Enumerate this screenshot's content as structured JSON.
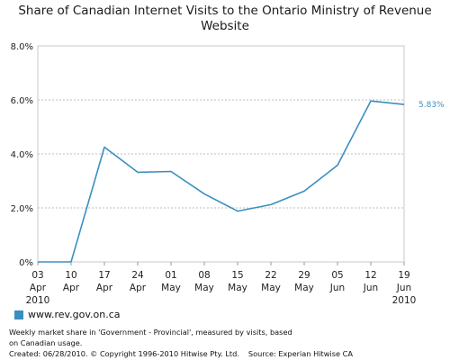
{
  "chart_data": {
    "type": "line",
    "title_line1": "Share of Canadian Internet Visits to the Ontario Ministry of Revenue",
    "title_line2": "Website",
    "x_ticks": [
      [
        "03",
        "Apr",
        "2010"
      ],
      [
        "10",
        "Apr",
        ""
      ],
      [
        "17",
        "Apr",
        ""
      ],
      [
        "24",
        "Apr",
        ""
      ],
      [
        "01",
        "May",
        ""
      ],
      [
        "08",
        "May",
        ""
      ],
      [
        "15",
        "May",
        ""
      ],
      [
        "22",
        "May",
        ""
      ],
      [
        "29",
        "May",
        ""
      ],
      [
        "05",
        "Jun",
        ""
      ],
      [
        "12",
        "Jun",
        ""
      ],
      [
        "19",
        "Jun",
        "2010"
      ]
    ],
    "y_ticks": [
      "0%",
      "2.0%",
      "4.0%",
      "6.0%",
      "8.0%"
    ],
    "ylim": [
      0,
      8
    ],
    "grid": "horizontal dashed",
    "series": [
      {
        "name": "www.rev.gov.on.ca",
        "color": "#3a8fc0",
        "values": [
          0,
          0,
          4.25,
          3.32,
          3.35,
          2.52,
          1.88,
          2.12,
          2.62,
          3.58,
          5.96,
          5.83
        ]
      }
    ],
    "end_label": "5.83%"
  },
  "legend": {
    "label": "www.rev.gov.on.ca"
  },
  "footnote": {
    "line1": "Weekly market share in 'Government - Provincial', measured by visits, based",
    "line2": "on Canadian usage.",
    "created": "Created: 06/28/2010. © Copyright 1996-2010 Hitwise Pty. Ltd.",
    "source": "Source: Experian Hitwise CA"
  }
}
